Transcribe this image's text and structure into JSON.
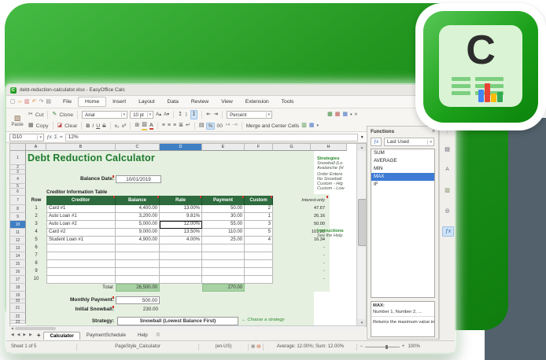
{
  "colors": {
    "brand_green": "#1e9a1e",
    "sheet_green": "#e5f0e0",
    "header_green": "#2e6b3e",
    "total_green": "#a9d2a4",
    "selection_blue": "#3d7bd5",
    "slate": "#52616c",
    "title_green": "#1d7a2d"
  },
  "titlebar": {
    "title": "debt-reduction-calculator.xlsx - EasyOffice Calc",
    "app_letter": "C"
  },
  "menus": [
    "File",
    "Home",
    "Insert",
    "Layout",
    "Data",
    "Review",
    "View",
    "Extension",
    "Tools"
  ],
  "active_menu": "Home",
  "toolbar": {
    "paste_label": "Paste",
    "cut_label": "Cut",
    "copy_label": "Copy",
    "clone_label": "Clone",
    "clear_label": "Clear",
    "font_name": "Arial",
    "font_size": "10 pt",
    "bold": "B",
    "italic": "I",
    "underline": "U",
    "strike": "S",
    "sub": "x₂",
    "sup": "x²",
    "number_format": "Percent",
    "merge_label": "Merge and Center Cells",
    "overflow": "»"
  },
  "formula_bar": {
    "cell_ref": "D10",
    "formula": "12%"
  },
  "grid": {
    "column_headers": [
      "A",
      "B",
      "C",
      "D",
      "E",
      "F",
      "G",
      "H"
    ],
    "selected_column": "D",
    "row_count": 23,
    "selected_row": 10,
    "title": "Debt Reduction Calculator",
    "balance_date_label": "Balance Date:",
    "balance_date_value": "10/01/2019",
    "table_caption": "Creditor Information Table",
    "creditor_table": {
      "headers": {
        "row": "Row",
        "creditor": "Creditor",
        "balance": "Balance",
        "rate": "Rate",
        "payment": "Payment",
        "custom": "Custom",
        "interest_only": "Interest-only"
      },
      "rows": [
        {
          "num": "1",
          "creditor": "Card #1",
          "balance": "4,400.00",
          "rate": "13.00%",
          "payment": "50.00",
          "custom": "2",
          "interest": "47.67"
        },
        {
          "num": "2",
          "creditor": "Auto Loan #1",
          "balance": "3,200.00",
          "rate": "9.81%",
          "payment": "30.00",
          "custom": "1",
          "interest": "26.16"
        },
        {
          "num": "3",
          "creditor": "Auto Loan #2",
          "balance": "5,000.00",
          "rate": "12.00%",
          "payment": "55.00",
          "custom": "3",
          "interest": "50.00"
        },
        {
          "num": "4",
          "creditor": "Card #2",
          "balance": "9,000.00",
          "rate": "13.50%",
          "payment": "110.00",
          "custom": "5",
          "interest": "101.25"
        },
        {
          "num": "5",
          "creditor": "Student Loan #1",
          "balance": "4,900.00",
          "rate": "4.00%",
          "payment": "25.00",
          "custom": "4",
          "interest": "16.34"
        },
        {
          "num": "6",
          "creditor": "",
          "balance": "",
          "rate": "",
          "payment": "",
          "custom": "",
          "interest": "-"
        },
        {
          "num": "7",
          "creditor": "",
          "balance": "",
          "rate": "",
          "payment": "",
          "custom": "",
          "interest": "-"
        },
        {
          "num": "8",
          "creditor": "",
          "balance": "",
          "rate": "",
          "payment": "",
          "custom": "",
          "interest": "-"
        },
        {
          "num": "9",
          "creditor": "",
          "balance": "",
          "rate": "",
          "payment": "",
          "custom": "",
          "interest": "-"
        },
        {
          "num": "10",
          "creditor": "",
          "balance": "",
          "rate": "",
          "payment": "",
          "custom": "",
          "interest": "-"
        }
      ],
      "selected_cell": {
        "row_index": 2,
        "field": "rate"
      }
    },
    "total_label": "Total:",
    "total_balance": "26,500.00",
    "total_payment": "270.00",
    "monthly_payment_label": "Monthly Payment:",
    "monthly_payment_value": "500.00",
    "initial_snowball_label": "Initial Snowball:",
    "initial_snowball_value": "230.00",
    "strategy_label": "Strategy:",
    "strategy_value": "Snowball (Lowest Balance First)",
    "strategy_hint": "← Choose a strategy",
    "side_notes": {
      "strategies_title": "Strategies",
      "items": [
        "Snowball (Lo",
        "Avalanche (H",
        "Order Entere",
        "No Snowball",
        "Custom - Hig",
        "Custom - Low"
      ],
      "instructions_title": "Instructions",
      "instructions_text": "See the Help"
    }
  },
  "functions_panel": {
    "title": "Functions",
    "category": "Last Used",
    "items": [
      "SUM",
      "AVERAGE",
      "MIN",
      "MAX",
      "IF"
    ],
    "selected_item": "MAX",
    "description": {
      "name": "MAX:",
      "args": "Number 1, Number 2, ...",
      "text": "Returns the maximum value in a"
    }
  },
  "sheet_tabs": {
    "tabs": [
      "Calculator",
      "PaymentSchedule",
      "Help"
    ],
    "active": "Calculator"
  },
  "status_bar": {
    "sheet_info": "Sheet 1 of 5",
    "page_style": "PageStyle_Calculator",
    "locale": "(en-US)",
    "stats": "Average: 12.00%; Sum: 12.00%",
    "zoom": "100%"
  },
  "icons": {
    "new_doc": "▢",
    "open": "▱",
    "save": "▥",
    "undo": "↶",
    "redo": "↷",
    "print": "▤",
    "paste": "▧",
    "cut": "✂",
    "copy": "▦",
    "clone": "✎",
    "clear": "◪",
    "font_grow": "A▴",
    "font_shrink": "A▾",
    "align_top": "↥",
    "align_center_v": "↨",
    "align_bottom": "↧",
    "indent_dec": "⇤",
    "indent_inc": "⇥",
    "align_left": "≡",
    "align_center": "≡",
    "align_right": "≡",
    "align_justify": "≣",
    "wrap": "↵",
    "borders": "⊞",
    "bg_color": "▧",
    "font_color": "A",
    "currency": "▤",
    "percent": "%",
    "thousands": "00",
    "dec_add": "⁺⁰",
    "dec_del": "⁻⁰",
    "merge": "▥",
    "table1": "▦",
    "table2": "▦",
    "table3": "▦",
    "dropdown": "▾",
    "chevron": "»",
    "fx": "ƒx",
    "sum": "Σ",
    "equals": "=",
    "close": "×",
    "more": "⋮",
    "up": "▲",
    "down": "▼",
    "left": "◀",
    "right": "▶",
    "plus": "+",
    "minus": "−",
    "copyright": "©",
    "sidebar_props": "▤",
    "sidebar_styles": "A",
    "sidebar_gallery": "▨",
    "sidebar_navigator": "◎",
    "sidebar_fx": "ƒx"
  }
}
